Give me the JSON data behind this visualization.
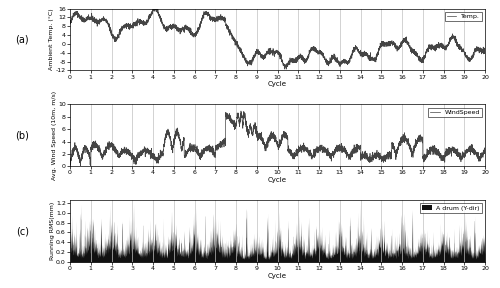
{
  "title_a": "Temp.",
  "title_b": "WindSpeed",
  "title_c": "A drum (Y-dir)",
  "xlabel": "Cycle",
  "ylabel_a": "Ambient Temp. (°C)",
  "ylabel_b": "Avg. Wind Speed (10m, m/s)",
  "ylabel_c": "Running RMS(mm)",
  "label_a": "(a)",
  "label_b": "(b)",
  "label_c": "(c)",
  "xlim": [
    0,
    20
  ],
  "ylim_a": [
    -12,
    16
  ],
  "ylim_b": [
    0,
    10
  ],
  "ylim_c": [
    0,
    1.25
  ],
  "yticks_a": [
    -12,
    -8,
    -4,
    0,
    4,
    8,
    12,
    16
  ],
  "yticks_b": [
    0,
    2,
    4,
    6,
    8,
    10
  ],
  "yticks_c": [
    0.0,
    0.2,
    0.4,
    0.6,
    0.8,
    1.0,
    1.2
  ],
  "xticks": [
    0,
    1,
    2,
    3,
    4,
    5,
    6,
    7,
    8,
    9,
    10,
    11,
    12,
    13,
    14,
    15,
    16,
    17,
    18,
    19,
    20
  ],
  "vline_color": "#c0c0c0",
  "line_color": "#444444",
  "fill_color": "#111111",
  "bg_color": "#ffffff",
  "n_points": 4000,
  "seed": 42
}
